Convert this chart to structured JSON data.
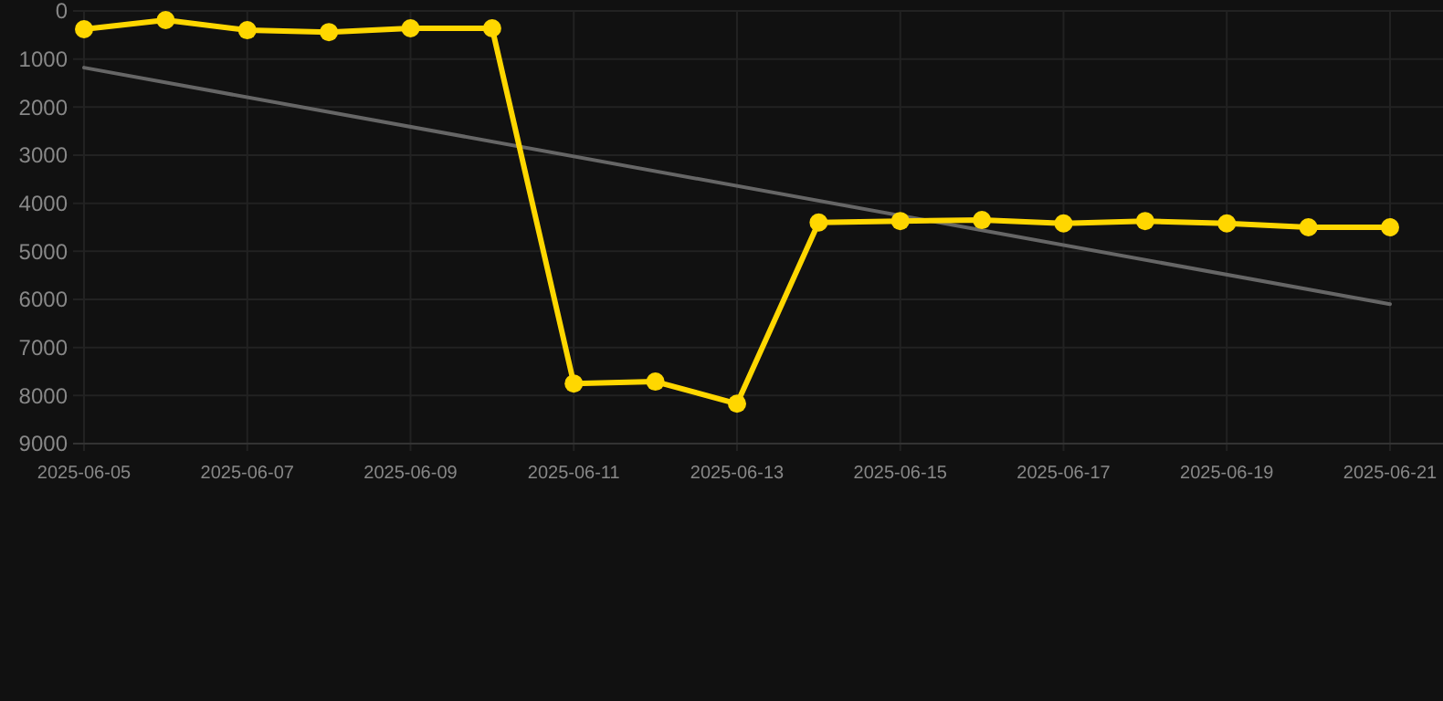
{
  "chart_data": {
    "type": "line",
    "x": [
      "2025-06-05",
      "2025-06-06",
      "2025-06-07",
      "2025-06-08",
      "2025-06-09",
      "2025-06-10",
      "2025-06-11",
      "2025-06-12",
      "2025-06-13",
      "2025-06-14",
      "2025-06-15",
      "2025-06-16",
      "2025-06-17",
      "2025-06-18",
      "2025-06-19",
      "2025-06-20",
      "2025-06-21"
    ],
    "series": [
      {
        "color": "#ffd700",
        "marker": "circle",
        "values": [
          380,
          190,
          400,
          440,
          360,
          360,
          7750,
          7710,
          8170,
          4400,
          4370,
          4350,
          4420,
          4370,
          4420,
          4500,
          4500
        ]
      },
      {
        "type": "line",
        "color": "#666666",
        "marker": "none",
        "x": [
          "2025-06-05",
          "2025-06-21"
        ],
        "values": [
          1180,
          6100
        ]
      }
    ],
    "xlim": [
      "2025-06-05",
      "2025-06-21"
    ],
    "xticks": [
      "2025-06-05",
      "2025-06-07",
      "2025-06-09",
      "2025-06-11",
      "2025-06-13",
      "2025-06-15",
      "2025-06-17",
      "2025-06-19",
      "2025-06-21"
    ],
    "ylim": [
      9000,
      0
    ],
    "yticks": [
      0,
      1000,
      2000,
      3000,
      4000,
      5000,
      6000,
      7000,
      8000,
      9000
    ],
    "grid": true,
    "line_style": "solid"
  }
}
